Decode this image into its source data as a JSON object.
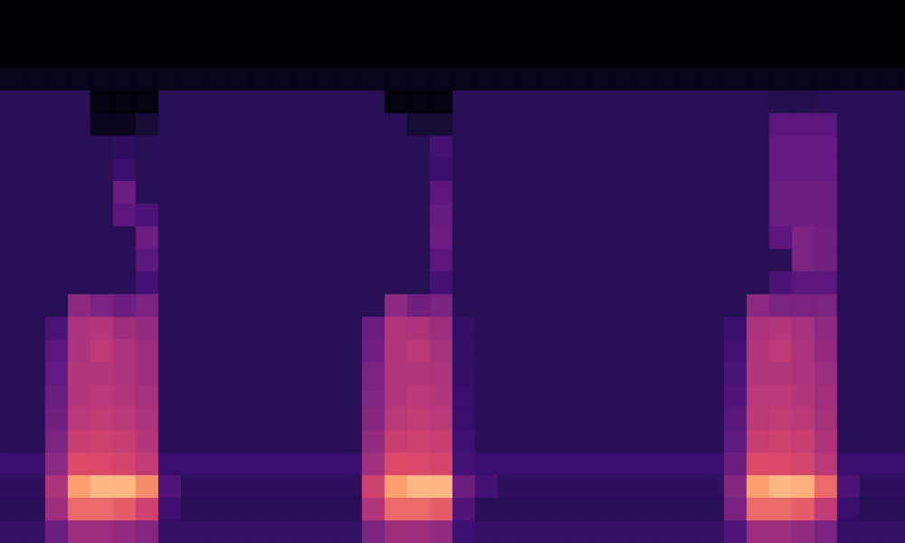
{
  "chart_data": {
    "type": "heatmap",
    "tick_labels": false,
    "zlim": [
      0,
      100
    ],
    "cells": [
      [
        0,
        0,
        0,
        0,
        0,
        0,
        0,
        0,
        0,
        0,
        0,
        0,
        0,
        0,
        0,
        0,
        0,
        0,
        0,
        0,
        0,
        0,
        0,
        0,
        0,
        0,
        0,
        0,
        0,
        0,
        0,
        0,
        0,
        0,
        0,
        0,
        0,
        0,
        0,
        0
      ],
      [
        0,
        0,
        0,
        0,
        0,
        0,
        0,
        0,
        0,
        0,
        0,
        0,
        0,
        0,
        0,
        0,
        0,
        0,
        0,
        0,
        0,
        0,
        0,
        0,
        0,
        0,
        0,
        0,
        0,
        0,
        0,
        0,
        0,
        0,
        0,
        0,
        0,
        0,
        0,
        0
      ],
      [
        0,
        0,
        0,
        0,
        0,
        0,
        0,
        0,
        0,
        0,
        0,
        0,
        0,
        0,
        0,
        0,
        0,
        0,
        0,
        0,
        0,
        0,
        0,
        0,
        0,
        0,
        0,
        0,
        0,
        0,
        0,
        0,
        0,
        0,
        0,
        0,
        0,
        0,
        0,
        0
      ],
      [
        4,
        4,
        4,
        4,
        4,
        4,
        4,
        4,
        4,
        4,
        4,
        4,
        4,
        4,
        4,
        4,
        4,
        4,
        4,
        4,
        4,
        4,
        4,
        4,
        4,
        4,
        4,
        4,
        4,
        4,
        4,
        4,
        4,
        4,
        4,
        4,
        4,
        4,
        4,
        4
      ],
      [
        18,
        18,
        18,
        18,
        2,
        2,
        2,
        18,
        18,
        18,
        18,
        18,
        18,
        18,
        18,
        18,
        18,
        2,
        2,
        2,
        18,
        18,
        18,
        18,
        18,
        18,
        18,
        18,
        18,
        18,
        18,
        18,
        18,
        18,
        15,
        15,
        18,
        18,
        18,
        18
      ],
      [
        18,
        18,
        18,
        18,
        5,
        5,
        10,
        18,
        18,
        18,
        18,
        18,
        18,
        18,
        18,
        18,
        18,
        18,
        10,
        10,
        18,
        18,
        18,
        18,
        18,
        18,
        18,
        18,
        18,
        18,
        18,
        18,
        18,
        18,
        35,
        35,
        35,
        18,
        18,
        18
      ],
      [
        18,
        18,
        18,
        18,
        18,
        20,
        18,
        18,
        18,
        18,
        18,
        18,
        18,
        18,
        18,
        18,
        18,
        18,
        18,
        28,
        18,
        18,
        18,
        18,
        18,
        18,
        18,
        18,
        18,
        18,
        18,
        18,
        18,
        18,
        38,
        38,
        38,
        18,
        18,
        18
      ],
      [
        18,
        18,
        18,
        18,
        18,
        25,
        18,
        18,
        18,
        18,
        18,
        18,
        18,
        18,
        18,
        18,
        18,
        18,
        18,
        25,
        18,
        18,
        18,
        18,
        18,
        18,
        18,
        18,
        18,
        18,
        18,
        18,
        18,
        18,
        38,
        38,
        38,
        18,
        18,
        18
      ],
      [
        18,
        18,
        18,
        18,
        18,
        40,
        18,
        18,
        18,
        18,
        18,
        18,
        18,
        18,
        18,
        18,
        18,
        18,
        18,
        35,
        18,
        18,
        18,
        18,
        18,
        18,
        18,
        18,
        18,
        18,
        18,
        18,
        18,
        18,
        40,
        40,
        40,
        18,
        18,
        18
      ],
      [
        18,
        18,
        18,
        18,
        18,
        35,
        30,
        18,
        18,
        18,
        18,
        18,
        18,
        18,
        18,
        18,
        18,
        18,
        18,
        38,
        18,
        18,
        18,
        18,
        18,
        18,
        18,
        18,
        18,
        18,
        18,
        18,
        18,
        18,
        40,
        40,
        40,
        18,
        18,
        18
      ],
      [
        18,
        18,
        18,
        18,
        18,
        18,
        40,
        18,
        18,
        18,
        18,
        18,
        18,
        18,
        18,
        18,
        18,
        18,
        18,
        40,
        18,
        18,
        18,
        18,
        18,
        18,
        18,
        18,
        18,
        18,
        18,
        18,
        18,
        18,
        35,
        45,
        42,
        18,
        18,
        18
      ],
      [
        18,
        18,
        18,
        18,
        18,
        18,
        35,
        18,
        18,
        18,
        18,
        18,
        18,
        18,
        18,
        18,
        18,
        18,
        18,
        35,
        18,
        18,
        18,
        18,
        18,
        18,
        18,
        18,
        18,
        18,
        18,
        18,
        18,
        18,
        18,
        45,
        42,
        18,
        18,
        18
      ],
      [
        18,
        18,
        18,
        18,
        18,
        18,
        28,
        18,
        18,
        18,
        18,
        18,
        18,
        18,
        18,
        18,
        18,
        18,
        18,
        28,
        18,
        18,
        18,
        18,
        18,
        18,
        18,
        18,
        18,
        18,
        18,
        18,
        18,
        18,
        30,
        35,
        35,
        18,
        18,
        18
      ],
      [
        18,
        18,
        18,
        50,
        45,
        40,
        45,
        18,
        18,
        18,
        18,
        18,
        18,
        18,
        18,
        18,
        18,
        50,
        42,
        45,
        18,
        18,
        18,
        18,
        18,
        18,
        18,
        18,
        18,
        18,
        18,
        18,
        18,
        50,
        45,
        45,
        45,
        18,
        18,
        18
      ],
      [
        18,
        18,
        30,
        60,
        62,
        55,
        52,
        18,
        18,
        18,
        18,
        18,
        18,
        18,
        18,
        18,
        40,
        62,
        60,
        55,
        22,
        18,
        18,
        18,
        18,
        18,
        18,
        18,
        18,
        18,
        18,
        18,
        25,
        60,
        62,
        58,
        50,
        18,
        18,
        18
      ],
      [
        18,
        18,
        35,
        60,
        65,
        60,
        55,
        18,
        18,
        18,
        18,
        18,
        18,
        18,
        18,
        18,
        42,
        62,
        64,
        58,
        22,
        18,
        18,
        18,
        18,
        18,
        18,
        18,
        18,
        18,
        18,
        18,
        28,
        62,
        65,
        60,
        52,
        18,
        18,
        18
      ],
      [
        18,
        18,
        38,
        62,
        62,
        60,
        55,
        18,
        18,
        18,
        18,
        18,
        18,
        18,
        18,
        18,
        45,
        62,
        62,
        60,
        22,
        18,
        18,
        18,
        18,
        18,
        18,
        18,
        18,
        18,
        18,
        18,
        30,
        62,
        62,
        60,
        54,
        18,
        18,
        18
      ],
      [
        18,
        18,
        40,
        62,
        64,
        62,
        58,
        18,
        18,
        18,
        18,
        18,
        18,
        18,
        18,
        18,
        46,
        62,
        64,
        62,
        24,
        18,
        18,
        18,
        18,
        18,
        18,
        18,
        18,
        18,
        18,
        18,
        32,
        64,
        64,
        62,
        56,
        18,
        18,
        18
      ],
      [
        18,
        18,
        42,
        64,
        66,
        64,
        60,
        18,
        18,
        18,
        18,
        18,
        18,
        18,
        18,
        18,
        48,
        64,
        66,
        64,
        24,
        18,
        18,
        18,
        18,
        18,
        18,
        18,
        18,
        18,
        18,
        18,
        34,
        64,
        66,
        64,
        58,
        18,
        18,
        18
      ],
      [
        18,
        18,
        45,
        68,
        70,
        68,
        62,
        18,
        18,
        18,
        18,
        18,
        18,
        18,
        18,
        18,
        52,
        68,
        70,
        68,
        26,
        18,
        18,
        18,
        18,
        18,
        18,
        18,
        18,
        18,
        18,
        18,
        36,
        68,
        70,
        68,
        60,
        18,
        18,
        18
      ],
      [
        24,
        24,
        50,
        74,
        74,
        72,
        66,
        24,
        24,
        24,
        24,
        24,
        24,
        24,
        24,
        24,
        56,
        74,
        74,
        72,
        28,
        24,
        24,
        24,
        24,
        24,
        24,
        24,
        24,
        24,
        24,
        24,
        40,
        74,
        74,
        72,
        64,
        24,
        24,
        24
      ],
      [
        20,
        20,
        60,
        88,
        91,
        91,
        85,
        32,
        20,
        20,
        20,
        20,
        20,
        20,
        20,
        20,
        70,
        88,
        91,
        91,
        40,
        28,
        20,
        20,
        20,
        20,
        20,
        20,
        20,
        20,
        20,
        20,
        48,
        88,
        91,
        90,
        80,
        30,
        20,
        20
      ],
      [
        18,
        18,
        55,
        80,
        80,
        78,
        70,
        26,
        18,
        18,
        18,
        18,
        18,
        18,
        18,
        18,
        62,
        80,
        80,
        78,
        32,
        18,
        18,
        18,
        18,
        18,
        18,
        18,
        18,
        18,
        18,
        18,
        44,
        80,
        80,
        78,
        66,
        24,
        18,
        18
      ],
      [
        22,
        22,
        40,
        55,
        55,
        52,
        48,
        22,
        22,
        22,
        22,
        22,
        22,
        22,
        22,
        22,
        45,
        55,
        55,
        52,
        26,
        22,
        22,
        22,
        22,
        22,
        22,
        22,
        22,
        22,
        22,
        22,
        32,
        55,
        55,
        52,
        45,
        22,
        22,
        22
      ]
    ]
  }
}
